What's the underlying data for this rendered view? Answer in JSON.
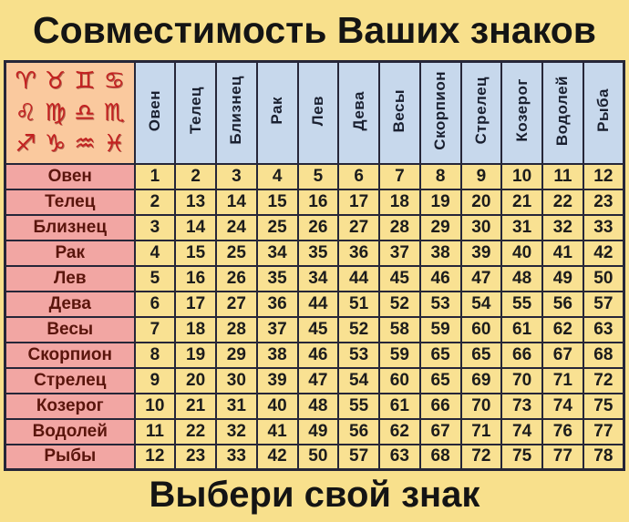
{
  "title": "Совместимость Ваших знаков",
  "footer": "Выбери свой знак",
  "chart_data": {
    "type": "table",
    "title": "Совместимость Ваших знаков",
    "corner_symbols": [
      "♈",
      "♉",
      "♊",
      "♋",
      "♌",
      "♍",
      "♎",
      "♏",
      "♐",
      "♑",
      "♒",
      "♓"
    ],
    "column_headers": [
      "Овен",
      "Телец",
      "Близнец",
      "Рак",
      "Лев",
      "Дева",
      "Весы",
      "Скорпион",
      "Стрелец",
      "Козерог",
      "Водолей",
      "Рыба"
    ],
    "row_headers": [
      "Овен",
      "Телец",
      "Близнец",
      "Рак",
      "Лев",
      "Дева",
      "Весы",
      "Скорпион",
      "Стрелец",
      "Козерог",
      "Водолей",
      "Рыбы"
    ],
    "values": [
      [
        1,
        2,
        3,
        4,
        5,
        6,
        7,
        8,
        9,
        10,
        11,
        12
      ],
      [
        2,
        13,
        14,
        15,
        16,
        17,
        18,
        19,
        20,
        21,
        22,
        23
      ],
      [
        3,
        14,
        24,
        25,
        26,
        27,
        28,
        29,
        30,
        31,
        32,
        33
      ],
      [
        4,
        15,
        25,
        34,
        35,
        36,
        37,
        38,
        39,
        40,
        41,
        42
      ],
      [
        5,
        16,
        26,
        35,
        34,
        44,
        45,
        46,
        47,
        48,
        49,
        50
      ],
      [
        6,
        17,
        27,
        36,
        44,
        51,
        52,
        53,
        54,
        55,
        56,
        57
      ],
      [
        7,
        18,
        28,
        37,
        45,
        52,
        58,
        59,
        60,
        61,
        62,
        63
      ],
      [
        8,
        19,
        29,
        38,
        46,
        53,
        59,
        65,
        65,
        66,
        67,
        68
      ],
      [
        9,
        20,
        30,
        39,
        47,
        54,
        60,
        65,
        69,
        70,
        71,
        72
      ],
      [
        10,
        21,
        31,
        40,
        48,
        55,
        61,
        66,
        70,
        73,
        74,
        75
      ],
      [
        11,
        22,
        32,
        41,
        49,
        56,
        62,
        67,
        71,
        74,
        76,
        77
      ],
      [
        12,
        23,
        33,
        42,
        50,
        57,
        63,
        68,
        72,
        75,
        77,
        78
      ]
    ]
  },
  "colors": {
    "background": "#f8e08c",
    "header_blue": "#c7d8ec",
    "row_pink": "#f2a6a3",
    "corner_peach": "#fac99e",
    "cell_yellow": "#f9e192",
    "border": "#262638",
    "glyph_red": "#c32020",
    "row_label_text": "#5a150c",
    "number_text": "#1c1c1c"
  }
}
